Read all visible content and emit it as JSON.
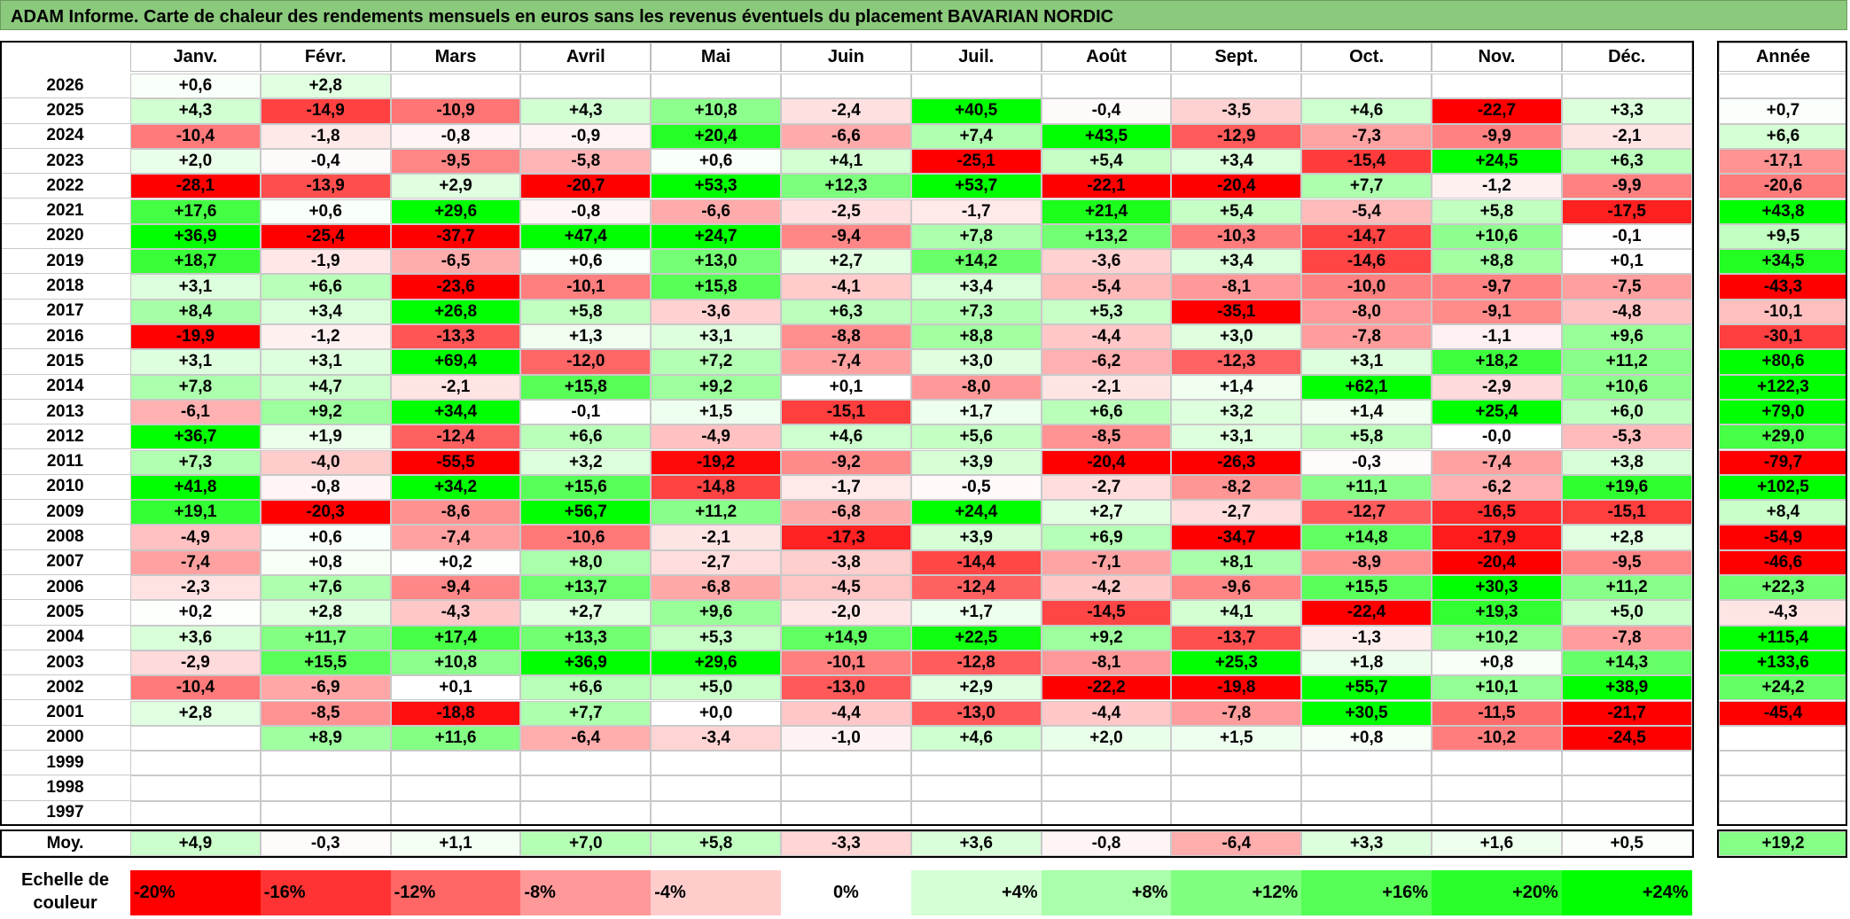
{
  "title": "ADAM Informe. Carte de chaleur des rendements mensuels en euros sans les revenus éventuels du placement BAVARIAN NORDIC",
  "chart_data": {
    "type": "heatmap",
    "title": "ADAM Informe. Carte de chaleur des rendements mensuels en euros sans les revenus éventuels du placement BAVARIAN NORDIC",
    "columns": [
      "Janv.",
      "Févr.",
      "Mars",
      "Avril",
      "Mai",
      "Juin",
      "Juil.",
      "Août",
      "Sept.",
      "Oct.",
      "Nov.",
      "Déc."
    ],
    "annual_header": "Année",
    "rows": [
      {
        "year": "2026",
        "values": [
          "+0,6",
          "+2,8",
          "",
          "",
          "",
          "",
          "",
          "",
          "",
          "",
          "",
          ""
        ],
        "annual": ""
      },
      {
        "year": "2025",
        "values": [
          "+4,3",
          "-14,9",
          "-10,9",
          "+4,3",
          "+10,8",
          "-2,4",
          "+40,5",
          "-0,4",
          "-3,5",
          "+4,6",
          "-22,7",
          "+3,3"
        ],
        "annual": "+0,7"
      },
      {
        "year": "2024",
        "values": [
          "-10,4",
          "-1,8",
          "-0,8",
          "-0,9",
          "+20,4",
          "-6,6",
          "+7,4",
          "+43,5",
          "-12,9",
          "-7,3",
          "-9,9",
          "-2,1"
        ],
        "annual": "+6,6"
      },
      {
        "year": "2023",
        "values": [
          "+2,0",
          "-0,4",
          "-9,5",
          "-5,8",
          "+0,6",
          "+4,1",
          "-25,1",
          "+5,4",
          "+3,4",
          "-15,4",
          "+24,5",
          "+6,3"
        ],
        "annual": "-17,1"
      },
      {
        "year": "2022",
        "values": [
          "-28,1",
          "-13,9",
          "+2,9",
          "-20,7",
          "+53,3",
          "+12,3",
          "+53,7",
          "-22,1",
          "-20,4",
          "+7,7",
          "-1,2",
          "-9,9"
        ],
        "annual": "-20,6"
      },
      {
        "year": "2021",
        "values": [
          "+17,6",
          "+0,6",
          "+29,6",
          "-0,8",
          "-6,6",
          "-2,5",
          "-1,7",
          "+21,4",
          "+5,4",
          "-5,4",
          "+5,8",
          "-17,5"
        ],
        "annual": "+43,8"
      },
      {
        "year": "2020",
        "values": [
          "+36,9",
          "-25,4",
          "-37,7",
          "+47,4",
          "+24,7",
          "-9,4",
          "+7,8",
          "+13,2",
          "-10,3",
          "-14,7",
          "+10,6",
          "-0,1"
        ],
        "annual": "+9,5"
      },
      {
        "year": "2019",
        "values": [
          "+18,7",
          "-1,9",
          "-6,5",
          "+0,6",
          "+13,0",
          "+2,7",
          "+14,2",
          "-3,6",
          "+3,4",
          "-14,6",
          "+8,8",
          "+0,1"
        ],
        "annual": "+34,5"
      },
      {
        "year": "2018",
        "values": [
          "+3,1",
          "+6,6",
          "-23,6",
          "-10,1",
          "+15,8",
          "-4,1",
          "+3,4",
          "-5,4",
          "-8,1",
          "-10,0",
          "-9,7",
          "-7,5"
        ],
        "annual": "-43,3"
      },
      {
        "year": "2017",
        "values": [
          "+8,4",
          "+3,4",
          "+26,8",
          "+5,8",
          "-3,6",
          "+6,3",
          "+7,3",
          "+5,3",
          "-35,1",
          "-8,0",
          "-9,1",
          "-4,8"
        ],
        "annual": "-10,1"
      },
      {
        "year": "2016",
        "values": [
          "-19,9",
          "-1,2",
          "-13,3",
          "+1,3",
          "+3,1",
          "-8,8",
          "+8,8",
          "-4,4",
          "+3,0",
          "-7,8",
          "-1,1",
          "+9,6"
        ],
        "annual": "-30,1"
      },
      {
        "year": "2015",
        "values": [
          "+3,1",
          "+3,1",
          "+69,4",
          "-12,0",
          "+7,2",
          "-7,4",
          "+3,0",
          "-6,2",
          "-12,3",
          "+3,1",
          "+18,2",
          "+11,2"
        ],
        "annual": "+80,6"
      },
      {
        "year": "2014",
        "values": [
          "+7,8",
          "+4,7",
          "-2,1",
          "+15,8",
          "+9,2",
          "+0,1",
          "-8,0",
          "-2,1",
          "+1,4",
          "+62,1",
          "-2,9",
          "+10,6"
        ],
        "annual": "+122,3"
      },
      {
        "year": "2013",
        "values": [
          "-6,1",
          "+9,2",
          "+34,4",
          "-0,1",
          "+1,5",
          "-15,1",
          "+1,7",
          "+6,6",
          "+3,2",
          "+1,4",
          "+25,4",
          "+6,0"
        ],
        "annual": "+79,0"
      },
      {
        "year": "2012",
        "values": [
          "+36,7",
          "+1,9",
          "-12,4",
          "+6,6",
          "-4,9",
          "+4,6",
          "+5,6",
          "-8,5",
          "+3,1",
          "+5,8",
          "-0,0",
          "-5,3"
        ],
        "annual": "+29,0"
      },
      {
        "year": "2011",
        "values": [
          "+7,3",
          "-4,0",
          "-55,5",
          "+3,2",
          "-19,2",
          "-9,2",
          "+3,9",
          "-20,4",
          "-26,3",
          "-0,3",
          "-7,4",
          "+3,8"
        ],
        "annual": "-79,7"
      },
      {
        "year": "2010",
        "values": [
          "+41,8",
          "-0,8",
          "+34,2",
          "+15,6",
          "-14,8",
          "-1,7",
          "-0,5",
          "-2,7",
          "-8,2",
          "+11,1",
          "-6,2",
          "+19,6"
        ],
        "annual": "+102,5"
      },
      {
        "year": "2009",
        "values": [
          "+19,1",
          "-20,3",
          "-8,6",
          "+56,7",
          "+11,2",
          "-6,8",
          "+24,4",
          "+2,7",
          "-2,7",
          "-12,7",
          "-16,5",
          "-15,1"
        ],
        "annual": "+8,4"
      },
      {
        "year": "2008",
        "values": [
          "-4,9",
          "+0,6",
          "-7,4",
          "-10,6",
          "-2,1",
          "-17,3",
          "+3,9",
          "+6,9",
          "-34,7",
          "+14,8",
          "-17,9",
          "+2,8"
        ],
        "annual": "-54,9"
      },
      {
        "year": "2007",
        "values": [
          "-7,4",
          "+0,8",
          "+0,2",
          "+8,0",
          "-2,7",
          "-3,8",
          "-14,4",
          "-7,1",
          "+8,1",
          "-8,9",
          "-20,4",
          "-9,5"
        ],
        "annual": "-46,6"
      },
      {
        "year": "2006",
        "values": [
          "-2,3",
          "+7,6",
          "-9,4",
          "+13,7",
          "-6,8",
          "-4,5",
          "-12,4",
          "-4,2",
          "-9,6",
          "+15,5",
          "+30,3",
          "+11,2"
        ],
        "annual": "+22,3"
      },
      {
        "year": "2005",
        "values": [
          "+0,2",
          "+2,8",
          "-4,3",
          "+2,7",
          "+9,6",
          "-2,0",
          "+1,7",
          "-14,5",
          "+4,1",
          "-22,4",
          "+19,3",
          "+5,0"
        ],
        "annual": "-4,3"
      },
      {
        "year": "2004",
        "values": [
          "+3,6",
          "+11,7",
          "+17,4",
          "+13,3",
          "+5,3",
          "+14,9",
          "+22,5",
          "+9,2",
          "-13,7",
          "-1,3",
          "+10,2",
          "-7,8"
        ],
        "annual": "+115,4"
      },
      {
        "year": "2003",
        "values": [
          "-2,9",
          "+15,5",
          "+10,8",
          "+36,9",
          "+29,6",
          "-10,1",
          "-12,8",
          "-8,1",
          "+25,3",
          "+1,8",
          "+0,8",
          "+14,3"
        ],
        "annual": "+133,6"
      },
      {
        "year": "2002",
        "values": [
          "-10,4",
          "-6,9",
          "+0,1",
          "+6,6",
          "+5,0",
          "-13,0",
          "+2,9",
          "-22,2",
          "-19,8",
          "+55,7",
          "+10,1",
          "+38,9"
        ],
        "annual": "+24,2"
      },
      {
        "year": "2001",
        "values": [
          "+2,8",
          "-8,5",
          "-18,8",
          "+7,7",
          "+0,0",
          "-4,4",
          "-13,0",
          "-4,4",
          "-7,8",
          "+30,5",
          "-11,5",
          "-21,7"
        ],
        "annual": "-45,4"
      },
      {
        "year": "2000",
        "values": [
          "",
          "+8,9",
          "+11,6",
          "-6,4",
          "-3,4",
          "-1,0",
          "+4,6",
          "+2,0",
          "+1,5",
          "+0,8",
          "-10,2",
          "-24,5"
        ],
        "annual": ""
      },
      {
        "year": "1999",
        "values": [
          "",
          "",
          "",
          "",
          "",
          "",
          "",
          "",
          "",
          "",
          "",
          ""
        ],
        "annual": ""
      },
      {
        "year": "1998",
        "values": [
          "",
          "",
          "",
          "",
          "",
          "",
          "",
          "",
          "",
          "",
          "",
          ""
        ],
        "annual": ""
      },
      {
        "year": "1997",
        "values": [
          "",
          "",
          "",
          "",
          "",
          "",
          "",
          "",
          "",
          "",
          "",
          ""
        ],
        "annual": ""
      }
    ],
    "average": {
      "label": "Moy.",
      "values": [
        "+4,9",
        "-0,3",
        "+1,1",
        "+7,0",
        "+5,8",
        "-3,3",
        "+3,6",
        "-0,8",
        "-6,4",
        "+3,3",
        "+1,6",
        "+0,5"
      ],
      "annual": "+19,2"
    },
    "scale": {
      "label": "Echelle de couleur",
      "stops": [
        {
          "label": "-20%",
          "value": -20
        },
        {
          "label": "-16%",
          "value": -16
        },
        {
          "label": "-12%",
          "value": -12
        },
        {
          "label": "-8%",
          "value": -8
        },
        {
          "label": "-4%",
          "value": -4
        },
        {
          "label": "0%",
          "value": 0
        },
        {
          "label": "+4%",
          "value": 4
        },
        {
          "label": "+8%",
          "value": 8
        },
        {
          "label": "+12%",
          "value": 12
        },
        {
          "label": "+16%",
          "value": 16
        },
        {
          "label": "+20%",
          "value": 20
        },
        {
          "label": "+24%",
          "value": 24
        }
      ]
    },
    "colors": {
      "negative_max": "#ff0000",
      "neutral": "#ffffff",
      "positive_max": "#00ff00",
      "title_bar": "#8bc97c"
    }
  }
}
